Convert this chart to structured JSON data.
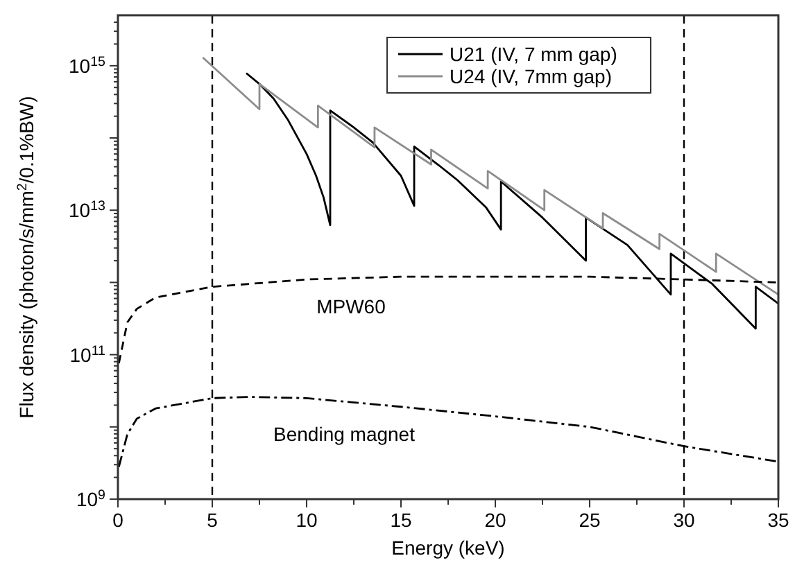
{
  "chart_data": {
    "type": "line",
    "xlabel": "Energy (keV)",
    "ylabel": "Flux density (photon/s/mm$^{2}$/0.1%BW)",
    "log": "y",
    "xlim": [
      0,
      35
    ],
    "ylim": [
      1000000000.0,
      5000000000000000.0
    ],
    "xticks": [
      0,
      {
        "value": 2.5,
        "label": null
      },
      5,
      {
        "value": 7.5,
        "label": null
      },
      10,
      {
        "value": 12.5,
        "label": null
      },
      15,
      {
        "value": 17.5,
        "label": null
      },
      20,
      {
        "value": 22.5,
        "label": null
      },
      25,
      {
        "value": 27.5,
        "label": null
      },
      30,
      {
        "value": 32.5,
        "label": null
      },
      35
    ],
    "yticks": [
      {
        "value": 1000000000.0,
        "label": "10$^{9}$"
      },
      {
        "value": 10000000000.0,
        "label": null
      },
      {
        "value": 100000000000.0,
        "label": "10$^{11}$"
      },
      {
        "value": 1000000000000.0,
        "label": null
      },
      {
        "value": 10000000000000.0,
        "label": "10$^{13}$"
      },
      {
        "value": 100000000000000.0,
        "label": null
      },
      {
        "value": 1000000000000000.0,
        "label": "10$^{15}$"
      }
    ],
    "grid": false,
    "legend": "top right",
    "series": [
      {
        "name": "U21 (IV, 7 mm gap)",
        "color": "#000000",
        "line_style": "solid",
        "x": [
          6.8,
          7.5,
          8.25,
          9,
          10,
          10.5,
          10.9,
          11.25,
          11.25,
          12.5,
          13.5,
          15,
          15.7,
          15.7,
          17,
          18,
          19.5,
          20.3,
          20.3,
          22.5,
          24.8,
          24.8,
          27,
          29.3,
          29.3,
          31.5,
          33.8,
          33.8,
          35
        ],
        "values": [
          790000000000000.0,
          560000000000000.0,
          350000000000000.0,
          180000000000000.0,
          60000000000000.0,
          30000000000000.0,
          15000000000000.0,
          6200000000000.0,
          240000000000000.0,
          140000000000000.0,
          87000000000000.0,
          30000000000000.0,
          11500000000000.0,
          76000000000000.0,
          42000000000000.0,
          26000000000000.0,
          11000000000000.0,
          5400000000000.0,
          25000000000000.0,
          7900000000000.0,
          2000000000000.0,
          7900000000000.0,
          3300000000000.0,
          680000000000.0,
          2500000000000.0,
          950000000000.0,
          230000000000.0,
          870000000000.0,
          510000000000.0
        ]
      },
      {
        "name": "U24 (IV, 7mm gap)",
        "color": "#8c8c8c",
        "line_style": "solid",
        "x": [
          4.5,
          7.5,
          7.5,
          10.6,
          10.6,
          13.6,
          13.6,
          16.6,
          16.6,
          19.6,
          19.6,
          22.6,
          22.6,
          25.7,
          25.7,
          28.7,
          28.7,
          31.7,
          31.7,
          35
        ],
        "values": [
          1300000000000000.0,
          250000000000000.0,
          560000000000000.0,
          140000000000000.0,
          280000000000000.0,
          74000000000000.0,
          140000000000000.0,
          43000000000000.0,
          69000000000000.0,
          20000000000000.0,
          35000000000000.0,
          10000000000000.0,
          19000000000000.0,
          5600000000000.0,
          9100000000000.0,
          2900000000000.0,
          4700000000000.0,
          1400000000000.0,
          2500000000000.0,
          680000000000.0
        ]
      },
      {
        "color": "#000000",
        "line_style": "dashed",
        "x": [
          0.05,
          0.5,
          1,
          2,
          5,
          10,
          15,
          20,
          25,
          30,
          35
        ],
        "values": [
          76000000000.0,
          280000000000.0,
          430000000000.0,
          620000000000.0,
          870000000000.0,
          1100000000000.0,
          1200000000000.0,
          1200000000000.0,
          1200000000000.0,
          1100000000000.0,
          1000000000000.0
        ]
      },
      {
        "color": "#000000",
        "line_style": "dashdot",
        "x": [
          0.05,
          0.5,
          1,
          2,
          5,
          7,
          10,
          15,
          20,
          25,
          30,
          35
        ],
        "values": [
          2800000000.0,
          7900000000.0,
          13000000000.0,
          18000000000.0,
          25000000000.0,
          26000000000.0,
          25000000000.0,
          19000000000.0,
          14000000000.0,
          10000000000.0,
          5400000000.0,
          3300000000.0
        ]
      }
    ],
    "ref_lines": [
      {
        "axis": "x",
        "value": 5,
        "line_style": "dashed"
      },
      {
        "axis": "x",
        "value": 30,
        "line_style": "dashed"
      }
    ],
    "annotations": [
      "MPW60",
      "Bending magnet"
    ]
  }
}
